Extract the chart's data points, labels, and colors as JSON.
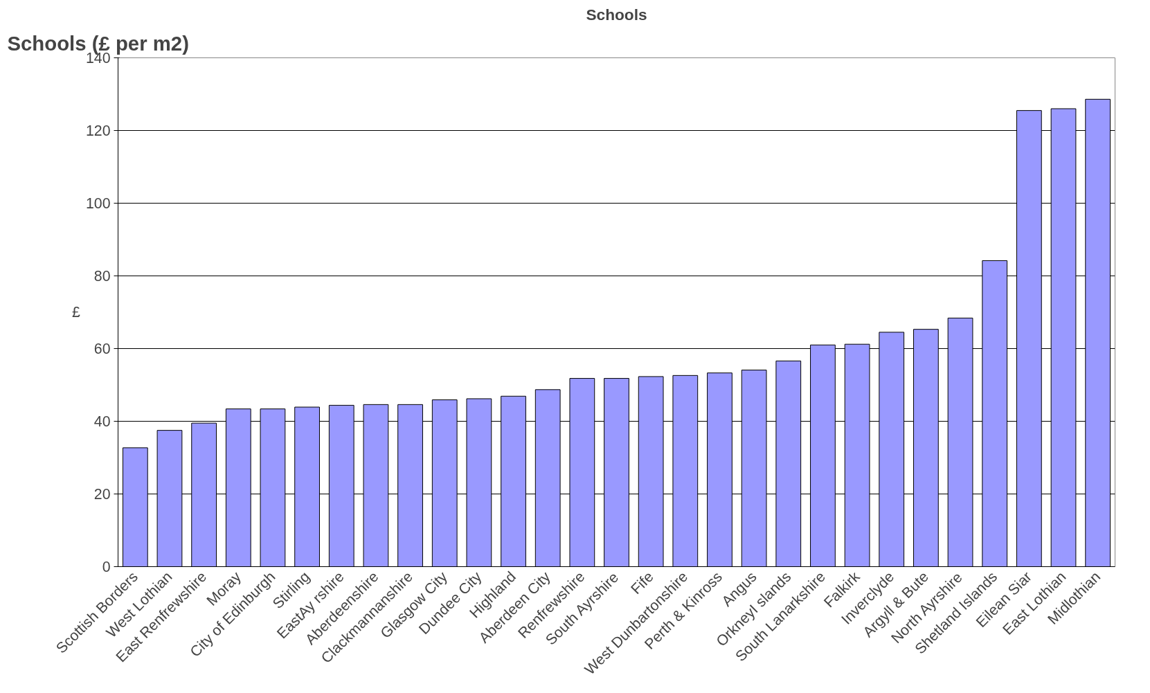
{
  "chart_data": {
    "type": "bar",
    "title": "Schools",
    "ylabel": "£",
    "annotations": [
      "Schools (£ per m2)"
    ],
    "categories": [
      "Scottish Borders",
      "West Lothian",
      "East Renfrewshire",
      "Moray",
      "City of Edinburgh",
      "Stirling",
      "EastAy rshire",
      "Aberdeenshire",
      "Clackmannanshire",
      "Glasgow City",
      "Dundee City",
      "Highland",
      "Aberdeen City",
      "Renfrewshire",
      "South Ayrshire",
      "Fife",
      "West Dunbartonshire",
      "Perth & Kinross",
      "Angus",
      "OrkneyI slands",
      "South Lanarkshire",
      "Falkirk",
      "Inverclyde",
      "Argyll & Bute",
      "North Ayrshire",
      "Shetland Islands",
      "Eilean Siar",
      "East Lothian",
      "Midlothian"
    ],
    "values": [
      32.7,
      37.5,
      39.5,
      43.4,
      43.4,
      43.9,
      44.4,
      44.6,
      44.6,
      45.9,
      46.2,
      46.9,
      48.7,
      51.8,
      51.8,
      52.3,
      52.6,
      53.3,
      54.1,
      56.6,
      61.0,
      61.2,
      64.5,
      65.3,
      68.4,
      84.2,
      125.5,
      126.0,
      128.6
    ],
    "color": "#9999ff",
    "ylim": [
      0,
      140
    ],
    "yticks": [
      0,
      20,
      40,
      60,
      80,
      100,
      120,
      140
    ],
    "grid": "y"
  }
}
